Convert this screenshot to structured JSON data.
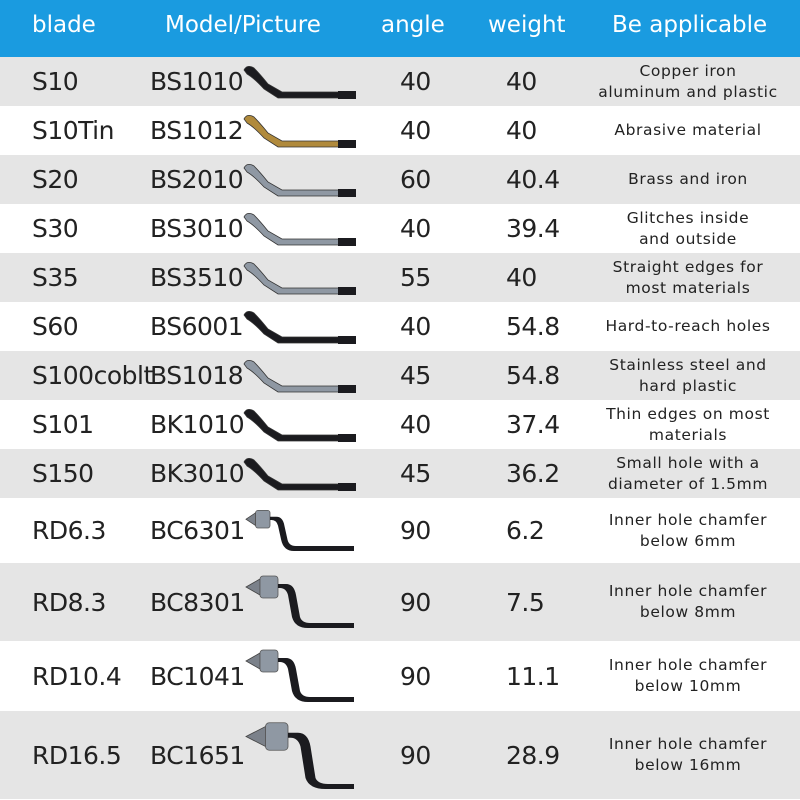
{
  "header": {
    "blade": "blade",
    "model": "Model/Picture",
    "angle": "angle",
    "weight": "weight",
    "applicable": "Be applicable",
    "bg_color": "#1a9be0"
  },
  "rows": [
    {
      "blade": "S10",
      "model": "BS1010",
      "angle": "40",
      "weight": "40",
      "applicable": "Copper iron\naluminum and plastic",
      "tool": "blade-black-icon"
    },
    {
      "blade": "S10Tin",
      "model": "BS1012",
      "angle": "40",
      "weight": "40",
      "applicable": "Abrasive material",
      "tool": "blade-gold-icon"
    },
    {
      "blade": "S20",
      "model": "BS2010",
      "angle": "60",
      "weight": "40.4",
      "applicable": "Brass and iron",
      "tool": "blade-silver-icon"
    },
    {
      "blade": "S30",
      "model": "BS3010",
      "angle": "40",
      "weight": "39.4",
      "applicable": "Glitches inside\nand outside",
      "tool": "blade-silver-icon"
    },
    {
      "blade": "S35",
      "model": "BS3510",
      "angle": "55",
      "weight": "40",
      "applicable": "Straight edges for\nmost materials",
      "tool": "blade-silver-icon"
    },
    {
      "blade": "S60",
      "model": "BS6001",
      "angle": "40",
      "weight": "54.8",
      "applicable": "Hard-to-reach holes",
      "tool": "blade-black-icon"
    },
    {
      "blade": "S100coblt",
      "model": "BS1018",
      "angle": "45",
      "weight": "54.8",
      "applicable": "Stainless steel and\nhard plastic",
      "tool": "blade-silver-icon"
    },
    {
      "blade": "S101",
      "model": "BK1010",
      "angle": "40",
      "weight": "37.4",
      "applicable": "Thin edges on most\nmaterials",
      "tool": "blade-black-icon"
    },
    {
      "blade": "S150",
      "model": "BK3010",
      "angle": "45",
      "weight": "36.2",
      "applicable": "Small hole with a\ndiameter of 1.5mm",
      "tool": "blade-black-icon"
    },
    {
      "blade": "RD6.3",
      "model": "BC6301",
      "angle": "90",
      "weight": "6.2",
      "applicable": "Inner hole chamfer\nbelow 6mm",
      "tool": "chamfer-small-icon"
    },
    {
      "blade": "RD8.3",
      "model": "BC8301",
      "angle": "90",
      "weight": "7.5",
      "applicable": "Inner hole chamfer\nbelow 8mm",
      "tool": "chamfer-medium-icon"
    },
    {
      "blade": "RD10.4",
      "model": "BC1041",
      "angle": "90",
      "weight": "11.1",
      "applicable": "Inner hole chamfer\nbelow 10mm",
      "tool": "chamfer-medium-icon"
    },
    {
      "blade": "RD16.5",
      "model": "BC1651",
      "angle": "90",
      "weight": "28.9",
      "applicable": "Inner hole chamfer\nbelow 16mm",
      "tool": "chamfer-large-icon"
    }
  ]
}
